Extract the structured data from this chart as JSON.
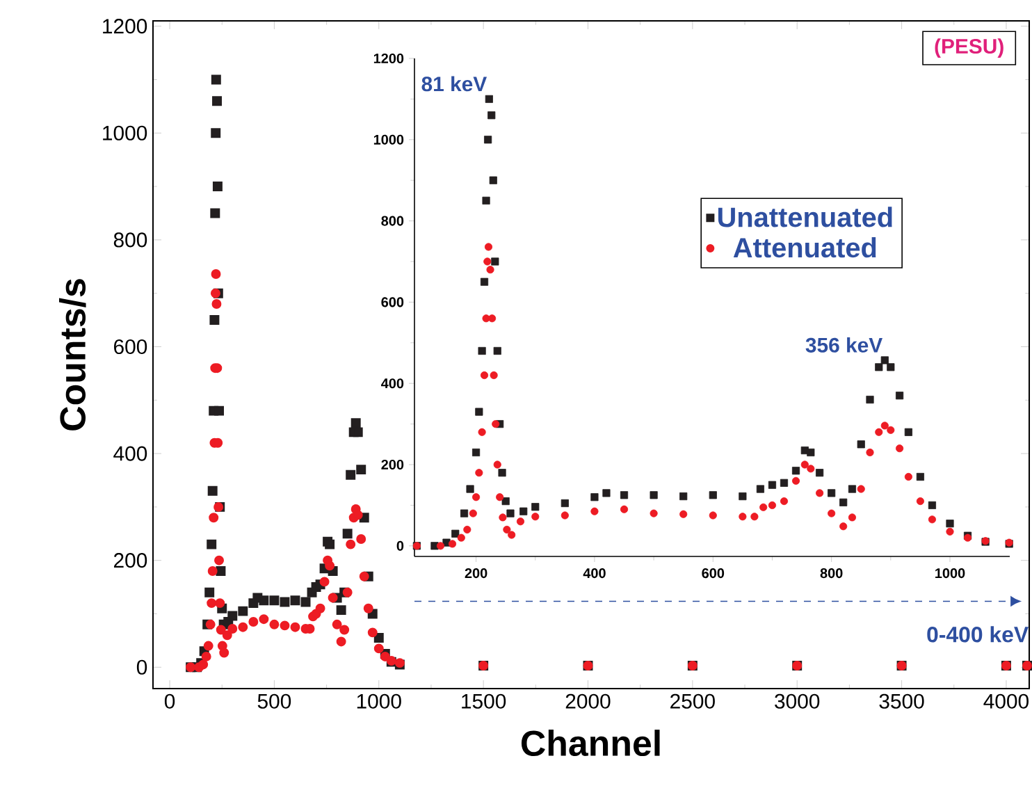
{
  "chart_data": [
    {
      "type": "scatter",
      "xlabel": "Channel",
      "ylabel": "Counts/s",
      "xlim": [
        -80,
        4110
      ],
      "ylim": [
        -40,
        1210
      ],
      "xticks": [
        0,
        500,
        1000,
        1500,
        2000,
        2500,
        3000,
        3500,
        4000
      ],
      "yticks": [
        0,
        200,
        400,
        600,
        800,
        1000,
        1200
      ],
      "legend": false,
      "annotations": [
        "(PESU)"
      ],
      "series": [
        {
          "color": "#231f20",
          "marker": "square",
          "x": [
            100,
            130,
            150,
            165,
            180,
            190,
            200,
            205,
            210,
            214,
            217,
            220,
            222,
            226,
            229,
            232,
            236,
            240,
            244,
            250,
            258,
            280,
            300,
            350,
            400,
            420,
            450,
            500,
            550,
            600,
            650,
            680,
            700,
            720,
            740,
            755,
            765,
            780,
            800,
            820,
            835,
            850,
            865,
            880,
            890,
            900,
            915,
            930,
            950,
            970,
            1000,
            1030,
            1060,
            1100,
            1500,
            2000,
            2500,
            3000,
            3500,
            4000,
            4100
          ],
          "values": [
            0,
            0,
            8,
            30,
            80,
            140,
            230,
            330,
            480,
            650,
            850,
            1000,
            1100,
            1060,
            900,
            700,
            480,
            300,
            180,
            110,
            80,
            85,
            96,
            105,
            120,
            130,
            125,
            125,
            122,
            125,
            122,
            140,
            150,
            155,
            185,
            235,
            230,
            180,
            130,
            107,
            140,
            250,
            360,
            440,
            457,
            440,
            370,
            280,
            170,
            100,
            55,
            25,
            10,
            5,
            3,
            3,
            3,
            3,
            3,
            3,
            3
          ]
        },
        {
          "color": "#ed1c24",
          "marker": "circle",
          "x": [
            100,
            140,
            160,
            175,
            185,
            195,
            200,
            205,
            210,
            214,
            217,
            219,
            221,
            224,
            227,
            230,
            233,
            236,
            240,
            245,
            252,
            260,
            275,
            300,
            350,
            400,
            450,
            500,
            550,
            600,
            650,
            670,
            685,
            700,
            720,
            740,
            755,
            765,
            780,
            800,
            820,
            835,
            850,
            865,
            880,
            890,
            900,
            915,
            930,
            950,
            970,
            1000,
            1030,
            1060,
            1100,
            1500,
            2000,
            2500,
            3000,
            3500,
            4000,
            4100
          ],
          "values": [
            0,
            0,
            5,
            20,
            40,
            80,
            120,
            180,
            280,
            420,
            560,
            700,
            736,
            680,
            560,
            420,
            300,
            200,
            120,
            70,
            40,
            27,
            60,
            72,
            75,
            85,
            90,
            80,
            78,
            75,
            72,
            72,
            95,
            100,
            110,
            160,
            200,
            190,
            130,
            80,
            48,
            70,
            140,
            230,
            280,
            296,
            285,
            240,
            170,
            110,
            65,
            35,
            20,
            12,
            8,
            3,
            3,
            3,
            3,
            3,
            3,
            3
          ]
        }
      ]
    },
    {
      "type": "scatter",
      "xlim": [
        96,
        1101
      ],
      "ylim": [
        -26,
        1200
      ],
      "xticks": [
        200,
        400,
        600,
        800,
        1000
      ],
      "yticks": [
        0,
        200,
        400,
        600,
        800,
        1000,
        1200
      ],
      "legend": "top right",
      "annotations": [
        {
          "text": "81 keV",
          "x": 222,
          "y": 1100
        },
        {
          "text": "356 keV",
          "x": 890,
          "y": 457
        },
        "0-400 keV"
      ],
      "series": [
        {
          "name": "Unattenuated",
          "color": "#231f20",
          "marker": "square",
          "x": [
            100,
            130,
            150,
            165,
            180,
            190,
            200,
            205,
            210,
            214,
            217,
            220,
            222,
            226,
            229,
            232,
            236,
            240,
            244,
            250,
            258,
            280,
            300,
            350,
            400,
            420,
            450,
            500,
            550,
            600,
            650,
            680,
            700,
            720,
            740,
            755,
            765,
            780,
            800,
            820,
            835,
            850,
            865,
            880,
            890,
            900,
            915,
            930,
            950,
            970,
            1000,
            1030,
            1060,
            1100
          ],
          "values": [
            0,
            0,
            8,
            30,
            80,
            140,
            230,
            330,
            480,
            650,
            850,
            1000,
            1100,
            1060,
            900,
            700,
            480,
            300,
            180,
            110,
            80,
            85,
            96,
            105,
            120,
            130,
            125,
            125,
            122,
            125,
            122,
            140,
            150,
            155,
            185,
            235,
            230,
            180,
            130,
            107,
            140,
            250,
            360,
            440,
            457,
            440,
            370,
            280,
            170,
            100,
            55,
            25,
            10,
            5
          ]
        },
        {
          "name": "Attenuated",
          "color": "#ed1c24",
          "marker": "circle",
          "x": [
            100,
            140,
            160,
            175,
            185,
            195,
            200,
            205,
            210,
            214,
            217,
            219,
            221,
            224,
            227,
            230,
            233,
            236,
            240,
            245,
            252,
            260,
            275,
            300,
            350,
            400,
            450,
            500,
            550,
            600,
            650,
            670,
            685,
            700,
            720,
            740,
            755,
            765,
            780,
            800,
            820,
            835,
            850,
            865,
            880,
            890,
            900,
            915,
            930,
            950,
            970,
            1000,
            1030,
            1060,
            1100
          ],
          "values": [
            0,
            0,
            5,
            20,
            40,
            80,
            120,
            180,
            280,
            420,
            560,
            700,
            736,
            680,
            560,
            420,
            300,
            200,
            120,
            70,
            40,
            27,
            60,
            72,
            75,
            85,
            90,
            80,
            78,
            75,
            72,
            72,
            95,
            100,
            110,
            160,
            200,
            190,
            130,
            80,
            48,
            70,
            140,
            230,
            280,
            296,
            285,
            240,
            170,
            110,
            65,
            35,
            20,
            12,
            8
          ]
        }
      ]
    }
  ]
}
